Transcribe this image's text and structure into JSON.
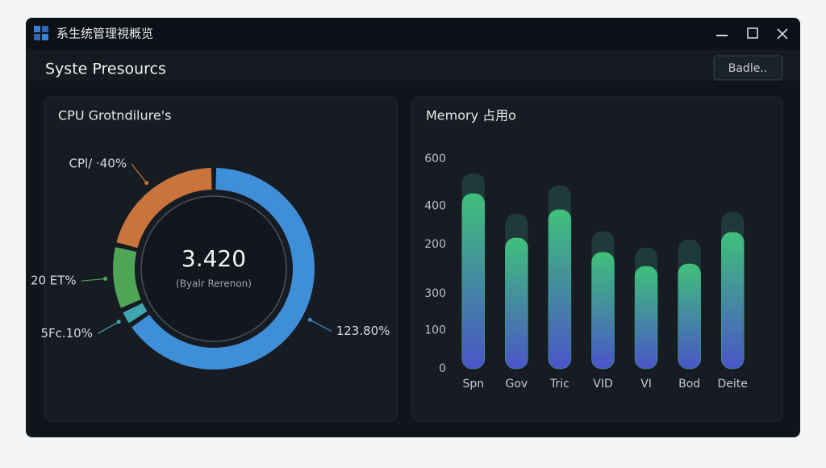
{
  "window": {
    "title": "系生统管理視概览",
    "header": "Syste Presourcs",
    "button": "Badle.."
  },
  "chart_data": [
    {
      "type": "pie",
      "title": "CPU Grotndilure's",
      "center_value": "3.420",
      "center_label": "(Byalr Rerenon)",
      "values": [
        123.8,
        5.1,
        20,
        40
      ],
      "value_labels": [
        "123.80%",
        "5Fc.10%",
        "20 ET%",
        "CPl/ ·40%"
      ],
      "colors": [
        "#3f8fd8",
        "#3fa6b0",
        "#4ea656",
        "#c8743c"
      ]
    },
    {
      "type": "bar",
      "title": "Memory 占用o",
      "categories": [
        "Spn",
        "Gov",
        "Tric",
        "VID",
        "VI",
        "Bod",
        "Deite"
      ],
      "series": [
        {
          "color": "#1f3a3a",
          "values": [
            559,
            443,
            524,
            393,
            346,
            369,
            448
          ]
        },
        {
          "color": "#3fb87a",
          "values": [
            501,
            374,
            455,
            333,
            293,
            300,
            390
          ]
        }
      ],
      "ylim": [
        0,
        600
      ],
      "yticks": [
        0,
        {
          "value": 110,
          "label": "100"
        },
        {
          "value": 215,
          "label": "300"
        },
        {
          "value": 355,
          "label": "200"
        },
        {
          "value": 465,
          "label": "400"
        },
        600
      ]
    }
  ]
}
